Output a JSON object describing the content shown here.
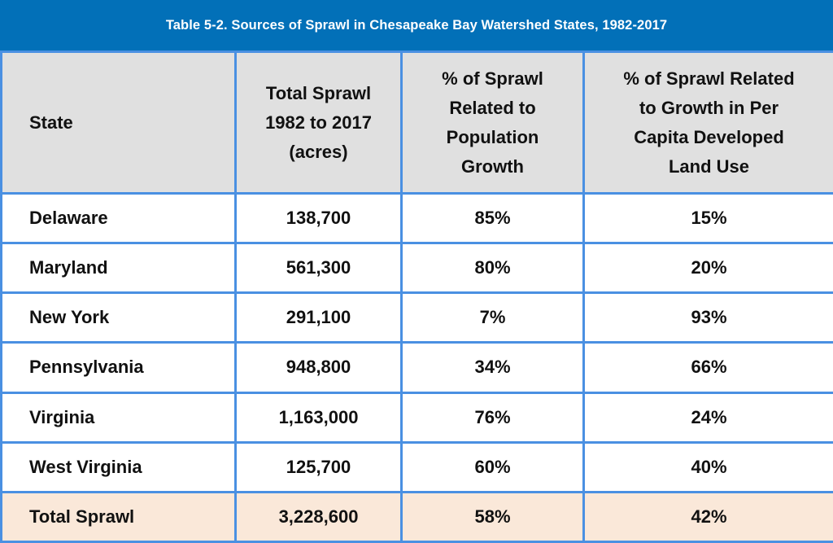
{
  "title": "Table 5-2. Sources of Sprawl in Chesapeake Bay Watershed States, 1982-2017",
  "colors": {
    "title_bar": "#0270b8",
    "border": "#4a90e2",
    "header_bg": "#e0e0e0",
    "total_row_bg": "#fae8d9"
  },
  "headers": [
    {
      "lines": [
        "State"
      ]
    },
    {
      "lines": [
        "Total Sprawl",
        "1982 to 2017",
        "(acres)"
      ]
    },
    {
      "lines": [
        "% of Sprawl",
        "Related to",
        "Population",
        "Growth"
      ]
    },
    {
      "lines": [
        "% of Sprawl Related",
        "to Growth in Per",
        "Capita Developed",
        "Land Use"
      ]
    }
  ],
  "rows": [
    {
      "state": "Delaware",
      "total_sprawl": "138,700",
      "pct_population": "85%",
      "pct_per_capita": "15%"
    },
    {
      "state": "Maryland",
      "total_sprawl": "561,300",
      "pct_population": "80%",
      "pct_per_capita": "20%"
    },
    {
      "state": "New York",
      "total_sprawl": "291,100",
      "pct_population": "7%",
      "pct_per_capita": "93%"
    },
    {
      "state": "Pennsylvania",
      "total_sprawl": "948,800",
      "pct_population": "34%",
      "pct_per_capita": "66%"
    },
    {
      "state": "Virginia",
      "total_sprawl": "1,163,000",
      "pct_population": "76%",
      "pct_per_capita": "24%"
    },
    {
      "state": "West Virginia",
      "total_sprawl": "125,700",
      "pct_population": "60%",
      "pct_per_capita": "40%"
    }
  ],
  "total": {
    "state": "Total Sprawl",
    "total_sprawl": "3,228,600",
    "pct_population": "58%",
    "pct_per_capita": "42%"
  }
}
